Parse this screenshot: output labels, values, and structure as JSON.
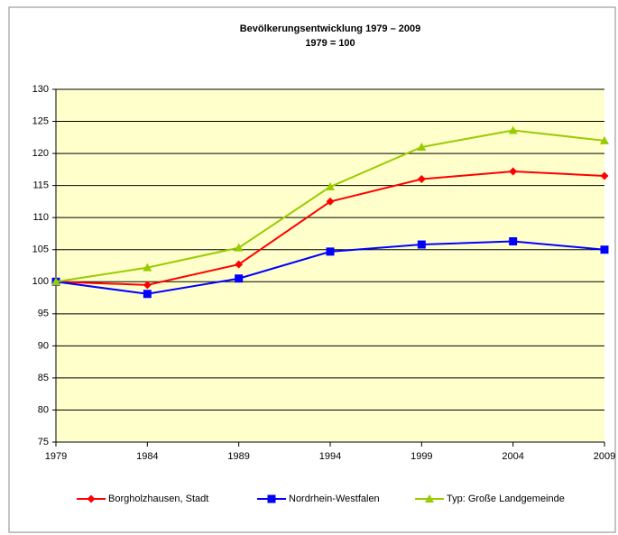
{
  "chart_data": {
    "type": "line",
    "title": "Bevölkerungsentwicklung 1979 – 2009",
    "subtitle": "1979 = 100",
    "x": [
      1979,
      1984,
      1989,
      1994,
      1999,
      2004,
      2009
    ],
    "xlim": [
      1979,
      2009
    ],
    "xticks": [
      1979,
      1984,
      1989,
      1994,
      1999,
      2004,
      2009
    ],
    "ylim": [
      75,
      130
    ],
    "yticks": [
      75,
      80,
      85,
      90,
      95,
      100,
      105,
      110,
      115,
      120,
      125,
      130
    ],
    "grid": true,
    "legend": "bottom",
    "series": [
      {
        "name": "Borgholzhausen, Stadt",
        "color": "#ff0000",
        "marker": "diamond",
        "values": [
          100,
          99.5,
          102.7,
          112.5,
          116,
          117.2,
          116.5
        ]
      },
      {
        "name": "Nordrhein-Westfalen",
        "color": "#0000ff",
        "marker": "square",
        "values": [
          100,
          98.1,
          100.5,
          104.7,
          105.8,
          106.3,
          105
        ]
      },
      {
        "name": "Typ: Große Landgemeinde",
        "color": "#99cc00",
        "marker": "triangle",
        "values": [
          100,
          102.2,
          105.3,
          114.8,
          121,
          123.6,
          122
        ]
      }
    ]
  }
}
